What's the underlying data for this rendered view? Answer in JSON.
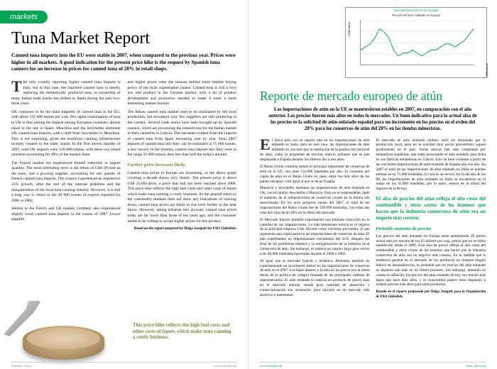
{
  "markets_label": "markets",
  "en": {
    "title": "Tuna Market Report",
    "intro": "Canned tuna imports into the EU were stable in 2007, when compared to the previous year. Prices were higher in all markets. A good indication for the present price hike is the request by Spanish tuna canners for an increase in prices for canned tuna of 20% in retail shops.",
    "col1a": "The only country reporting higher canned tuna imports is Italy, but in this case, the imported canned tuna is merely replacing the domestically produced tuna, as ownership of many Italian trade marks has shifted to Spain during the past two-three years.",
    "col1b": "UK continues to be the main importer of canned tuna in the EU, with about 132 000 tonnes per year. Per capita consumption of tuna in UK is thus among the highest among European countries, almost equal to the one in Spain. Mauritius and the Seychelles dominate UK canned tuna imports, with a shift from Seychelles to Mauritius. This is not surprising, given the enormous canning infrastructure recently created in the latter island. In the first eleven months of 2007, total UK imports were 120 000 tonnes, with these two island countries accounting for 40% of the market share.",
    "col1c": "The French market too experienced limited reduction in import quantity. The most interesting news is the return of Côte d'Ivoire as the main, and a growing supplier, accounting for one quarter of French canned tuna imports. The country experienced an impressive 25% growth, after the end of the internal problems and the reorganization of the local tuna canning industry. However, it is still a long way to return to the 40 000 tonnes of exports reported for 2000 or 2002.",
    "col1d": "Similar to the French and UK market, Germany also experienced slightly lower canned tuna imports in the course of 2007. Lower supplies",
    "col2a": "and higher prices were the reasons behind more limited buying policy of the main supermarket chains. Canned tuna is still a very low end product in the German market, with a lot of product development and promotion needed, to make it enter a more interesting market bracket.",
    "col2b": "The Italian canned tuna market used to be dominated by the local production, but nowadays very few suppliers are still producing in the country. Several trade marks have been brought up by Spanish canners, which are processing the canned tuna for the Italian market in their canneries in Galicia. This becomes evident from the imports of canned tuna from Spain increasing year by year. Total 2007 imports of canned tuna into Italy can be estimated at 75 000 tonnes, a new record. In the nineties, canned tuna imports into Italy were in the range 35 000 tonnes, thus less than half the today's amount.",
    "sub": "Further price increases likely",
    "col2c": "Canned tuna prices in Europe are increasing, as the above graph covering a decade shows very clearly. The present price is above US$ 25.00/carton, a price that had not been reached since 2000. This price hike reflects the high fuel costs and other costs of inputs which make tuna canning a costly business. As the general trend on the commodity markets does not show any indications of slowing down, canned tuna prices are likely to rise even further in the near future. However, taking inflation into account, canned tuna prices today are far lower than those of ten years ago, and the consumer seems to be willing to accept higher prices for this product.",
    "credit": "Based on the report prepared by Helga Josupeit for FAO Globefish.",
    "callout": "This price hike reflects the high fuel costs and other costs of inputs which make tuna canning a costly business.",
    "footer_l": "Eurofish | Tuna",
    "footer_r": "www.eurofish.dk"
  },
  "chart": {
    "title": "Canned tuna prices in Europe",
    "subtitle": "Precios del atún enlatado en Europa",
    "y_label_left": "US$/carton",
    "y_label_right": "US$/cartón",
    "ymin": 15,
    "ymax": 30,
    "line_color": "#00a651",
    "points": [
      20,
      21,
      22,
      24,
      27,
      26,
      24,
      20,
      18,
      19,
      19,
      20,
      19,
      18,
      19,
      20,
      20,
      21,
      22,
      22,
      21,
      22,
      23,
      25,
      27
    ]
  },
  "es": {
    "title": "Reporte de mercado europeo de atún",
    "intro": "Las importaciones de atún en la UE se mantuvieron estables en 2007, en comparación con el año anterior. Los precios fueron más altos en todos lo mercados. Un buen indicativo para la actual alza de los precios es la solicitud de atún enlatado español para un incremento en los precios en el orden del 20% para las conservas de atún del 20% en las tiendas minoristas.",
    "col1a": "El único país con un reporte alto en las importaciones de atún enlatado es Italia, pero en este caso, las importaciones de atún enlatado no son más que la sustitución de la producción nacional de atún, como la propiedad de muchas marcas italianas que se han desplazado a España durante los últimos dos o tres años.",
    "col1b": "El Reino Unido continúa siendo el principal importador de conservas de atún en la UE, con unas 132.000 toneladas por año. El consumo per capita de atún en el Reino Unido es, pues, entre los más altos de los países europeos, casi igual al que se da en España.",
    "col1c": "Mauricio y Seychelles dominan las importaciones de atún enlatado en UK, con el cambio Seychelles a Mauricio. Esto no es sorprendente, dado el aumento de la infraestructura de conservas creado en la última isla mencionada. En los once primeros meses del 2007, el total de las importaciones del Reino Unido fue de 120.000 toneladas, con estas dos islas dos islas de un 40% en la oferta del mercado.",
    "col1d": "El Mercado francés también experimentó una limitada reducción en la cantidad de sus importaciones. La más interesante noticia es el regreso de la principal empresa Côte d'Ivoire como creciente proveedor, la que representa una cuarta parte en las importaciones de conservas de atún. El país experimentó un impresionante crecimiento del 25%, después del final de los problemas internos y la reorganización de la industria local conservera de atún. Sin embargo, es todavía un camino largo para volver a las 40.000 toneladas reportadas durante el 2000 o 2002.",
    "col1e": "Al igual que el mercado francés y británico, Alemania también ha experimentado un incremento menor en las importaciones de conservas de atún en el 2007. Los bajos abastos y la alza en los precio son la razón detrás de la política de compra limitada de las principales cadenas de supermercados. El atún enlatado es todavía un producto de precio bajo en el mercado alemán, donde gran cantidad de desarrollo y comercialización son necesarios, para ubicarlo en un mercado más atractivo e interesante.",
    "col2a": "El mercado de atún enlatado italiano solía ser dominado por la producción local, pero en la realidad muy pocos proveedores siguen produciendo en el país. Varias marcas han sido compradas por enlatadoras españolas, que están procesando el atún enlatado para Italia en sus fábricas enlatadoras en Galicia. Esto se hace evidente a partir de las crecientes importaciones de atún enlatado de España año con año. En 2007 el total de las importaciones de atún enlatado en Italia se pueden estimar se en 75.000 toneladas, lo cual es un record. En la década de los 90, las importaciones de atún enlatado en Italia se encuentran en el rango de las 35.000 toneladas, por lo tanto, menos de la mitad del importe de la de hoy.",
    "callout": "El alza de precios del atún refleja el alto costo del combustible y otros costos de los insumos que hacen que la industria conservera de atún sea un negocio más costoso.",
    "sub": "Probable aumento de precios",
    "col2b": "Los precios del atún enlatado en Europa están aumentando. El precio actual está por encima de los 25 dólares por caja, precio que no se había establecido desde el 2000. Esta alza de precio refleja el alto costo del combustible y otros costos de los insumos que hacen que la industria conservera de atún sea un negocio más costoso. En la medida que la tendencia general en el mercado de los productos no muestre ningún indicio de desaceleración, es probable que los precios del atún enlatado se disparen aún más en un futuro próximo. Sin embargo, teniendo en cuenta la inflación, los precios del atún enlatado de hoy son mucho más bajos que hace diez años, y el consumidor parece estar dispuesto a aceptar precios más altos para estos productos.",
    "credit": "Basado en el reporte preparado por Helga Josupeit para la Organización de FAO Globefish.",
    "footer_l": "www.eurofish.dk",
    "footer_r": "Atún | Eurofish"
  }
}
